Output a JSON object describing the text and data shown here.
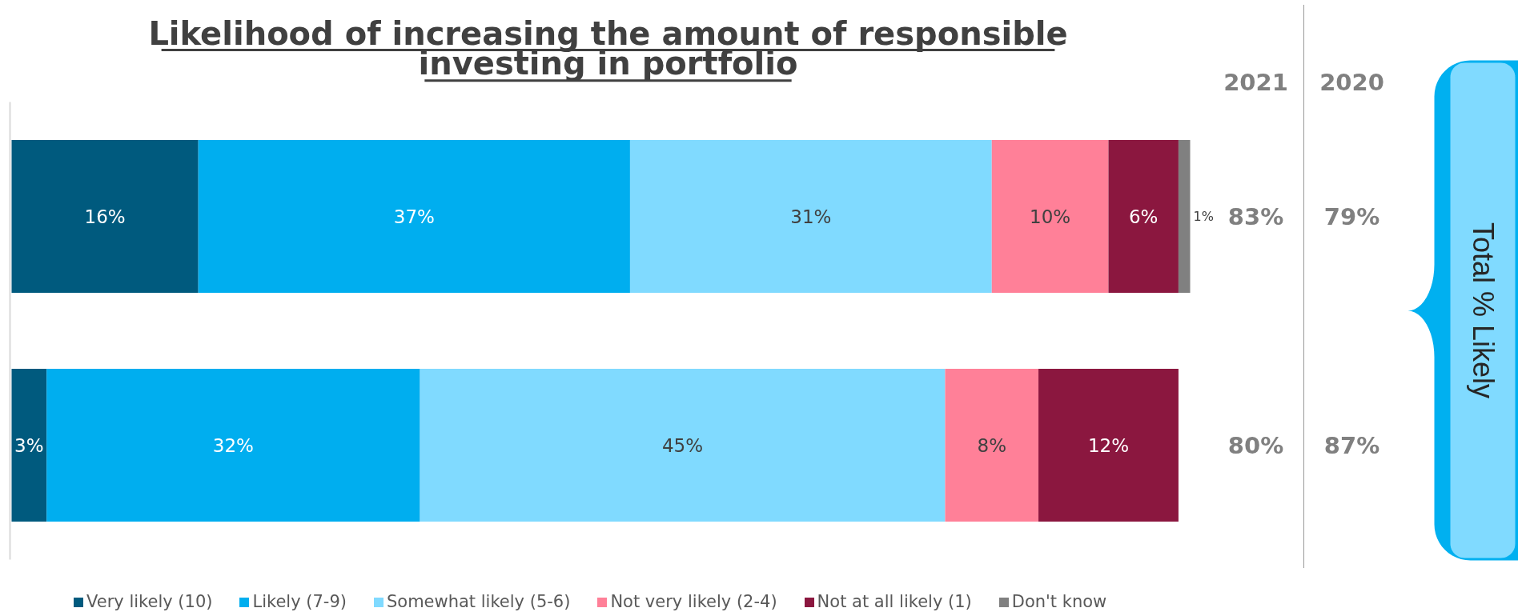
{
  "chart_data": {
    "type": "bar",
    "orientation": "horizontal",
    "stacked": true,
    "title": "Likelihood of increasing the amount of responsible investing in portfolio",
    "categories": [
      null,
      null
    ],
    "series": [
      {
        "name": "Very likely (10)",
        "color": "#005a7e",
        "values": [
          16,
          3
        ],
        "value_labels": [
          "16%",
          "3%"
        ]
      },
      {
        "name": "Likely (7-9)",
        "color": "#00aeef",
        "values": [
          37,
          32
        ],
        "value_labels": [
          "37%",
          "32%"
        ]
      },
      {
        "name": "Somewhat likely (5-6)",
        "color": "#80daff",
        "values": [
          31,
          45
        ],
        "value_labels": [
          "31%",
          "45%"
        ]
      },
      {
        "name": "Not very likely (2-4)",
        "color": "#ff8098",
        "values": [
          10,
          8
        ],
        "value_labels": [
          "10%",
          "8%"
        ]
      },
      {
        "name": "Not at all likely (1)",
        "color": "#8b173f",
        "values": [
          6,
          12
        ],
        "value_labels": [
          "6%",
          "12%"
        ]
      },
      {
        "name": "Don't know",
        "color": "#808080",
        "values": [
          1,
          null
        ],
        "value_labels": [
          "1%",
          null
        ]
      }
    ],
    "annotations": [
      "2021",
      "2020",
      "83%",
      "79%",
      "80%",
      "87%",
      "Total % Likely"
    ],
    "legend": "bottom"
  }
}
